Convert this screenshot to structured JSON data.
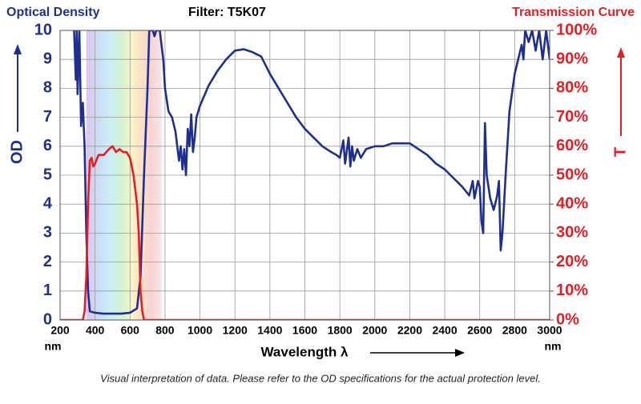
{
  "chart_data": {
    "type": "line",
    "title": "Filter: T5K07",
    "xlabel": "Wavelength λ",
    "x_unit": "nm",
    "ylabel": "OD",
    "y2label": "T",
    "footnote": "Visual interpretation of data. Please refer to the OD specifications for the actual protection level.",
    "xlim": [
      200,
      3000
    ],
    "xticks": [
      200,
      400,
      600,
      800,
      1000,
      1200,
      1400,
      1600,
      1800,
      2000,
      2200,
      2400,
      2600,
      2800,
      3000
    ],
    "ylim": [
      0,
      10
    ],
    "yticks": [
      0,
      1,
      2,
      3,
      4,
      5,
      6,
      7,
      8,
      9,
      10
    ],
    "y2lim": [
      0,
      100
    ],
    "y2ticks": [
      {
        "value": 0,
        "label": "0%"
      },
      {
        "value": 10,
        "label": "10%"
      },
      {
        "value": 20,
        "label": "20%"
      },
      {
        "value": 30,
        "label": "30%"
      },
      {
        "value": 40,
        "label": "40%"
      },
      {
        "value": 50,
        "label": "50%"
      },
      {
        "value": 60,
        "label": "60%"
      },
      {
        "value": 70,
        "label": "70%"
      },
      {
        "value": 80,
        "label": "80%"
      },
      {
        "value": 90,
        "label": "90%"
      },
      {
        "value": 100,
        "label": "100%"
      }
    ],
    "grid": true,
    "series": [
      {
        "name": "Optical Density",
        "color": "#1f2f8f",
        "axis": "y",
        "x": [
          280,
          290,
          295,
          300,
          310,
          320,
          330,
          340,
          350,
          360,
          370,
          400,
          450,
          500,
          550,
          600,
          640,
          660,
          680,
          690,
          700,
          710,
          730,
          740,
          750,
          770,
          790,
          800,
          820,
          840,
          860,
          880,
          890,
          900,
          910,
          920,
          930,
          940,
          950,
          960,
          970,
          980,
          1000,
          1050,
          1100,
          1150,
          1200,
          1250,
          1300,
          1350,
          1400,
          1450,
          1500,
          1550,
          1600,
          1650,
          1700,
          1750,
          1780,
          1800,
          1820,
          1830,
          1850,
          1860,
          1870,
          1880,
          1900,
          1920,
          1950,
          2000,
          2050,
          2100,
          2150,
          2200,
          2250,
          2300,
          2350,
          2400,
          2450,
          2500,
          2540,
          2560,
          2570,
          2590,
          2600,
          2610,
          2620,
          2630,
          2640,
          2660,
          2680,
          2700,
          2710,
          2720,
          2730,
          2750,
          2770,
          2800,
          2820,
          2840,
          2850,
          2860,
          2880,
          2900,
          2920,
          2940,
          2960,
          2980,
          3000
        ],
        "values": [
          10,
          8.3,
          10,
          7.8,
          10,
          6.7,
          7.5,
          6.0,
          3.0,
          1.0,
          0.3,
          0.25,
          0.22,
          0.22,
          0.22,
          0.25,
          0.4,
          1.5,
          5.0,
          6.5,
          8,
          10,
          10,
          9.8,
          10,
          10,
          9.0,
          8.0,
          7.2,
          7.0,
          6.5,
          5.5,
          6.0,
          5.2,
          5.9,
          5.0,
          6.6,
          6.0,
          7.1,
          5.8,
          6.3,
          7.0,
          7.4,
          8.1,
          8.6,
          9.0,
          9.3,
          9.35,
          9.25,
          9.1,
          8.5,
          8.0,
          7.5,
          7.0,
          6.6,
          6.3,
          6.0,
          5.8,
          5.7,
          5.6,
          6.2,
          5.4,
          6.3,
          5.3,
          6.0,
          5.5,
          5.9,
          5.6,
          5.9,
          6.0,
          6.0,
          6.1,
          6.1,
          6.1,
          5.9,
          5.7,
          5.4,
          5.2,
          4.9,
          4.6,
          4.3,
          4.8,
          4.2,
          4.8,
          4.6,
          3.4,
          3.0,
          6.8,
          5.0,
          4.2,
          3.8,
          4.3,
          4.8,
          2.4,
          3.0,
          5.2,
          7.2,
          8.5,
          9.0,
          9.5,
          9.0,
          10,
          9.6,
          10,
          9.3,
          10,
          9.0,
          10,
          9.0
        ]
      },
      {
        "name": "Transmission Curve",
        "color": "#e31e24",
        "axis": "y2",
        "x": [
          200,
          330,
          340,
          350,
          360,
          370,
          380,
          390,
          400,
          420,
          450,
          480,
          500,
          520,
          540,
          560,
          580,
          600,
          620,
          640,
          650,
          660,
          670,
          680,
          700,
          3000
        ],
        "values": [
          0,
          0,
          3,
          15,
          40,
          55,
          56,
          53,
          54,
          57,
          57,
          59,
          60,
          58,
          59,
          58,
          58,
          56,
          50,
          40,
          30,
          10,
          3,
          0,
          0,
          0
        ]
      }
    ]
  }
}
